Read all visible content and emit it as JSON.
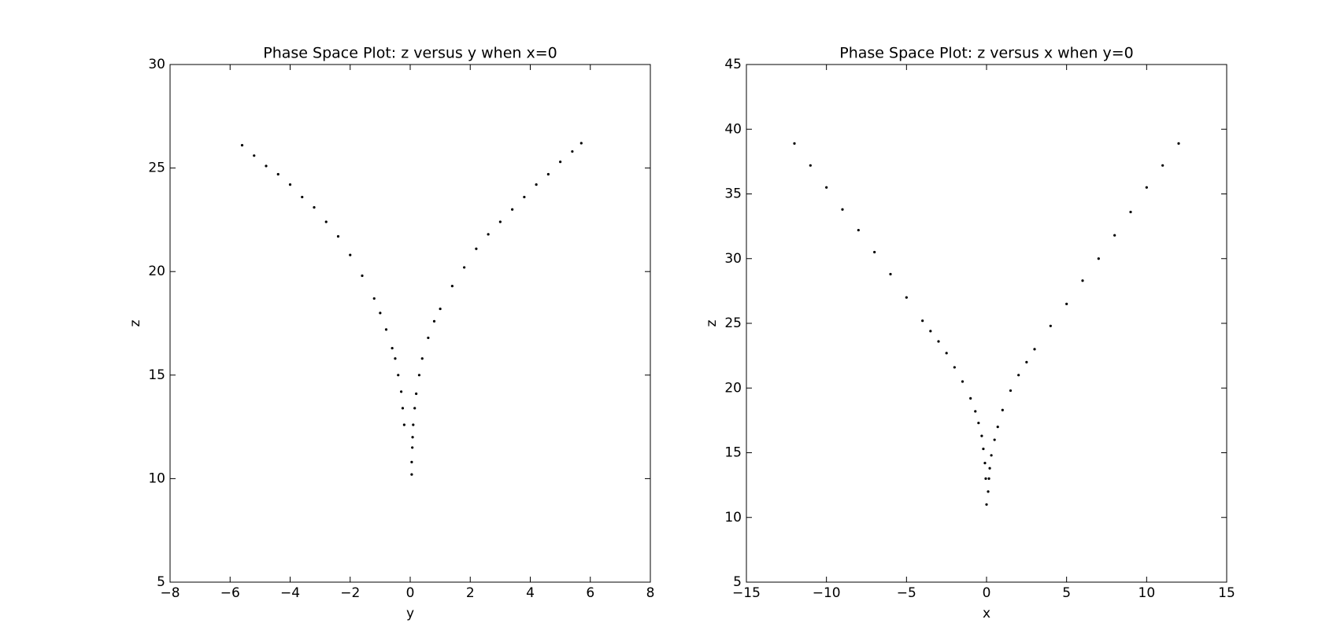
{
  "chart_data": [
    {
      "type": "scatter",
      "title": "Phase Space Plot: z versus y when x=0",
      "x_label": "y",
      "y_label": "z",
      "xlim": [
        -8,
        8
      ],
      "ylim": [
        5,
        30
      ],
      "xticks": [
        {
          "value": -8,
          "label": "−8"
        },
        {
          "value": -6,
          "label": "−6"
        },
        {
          "value": -4,
          "label": "−4"
        },
        {
          "value": -2,
          "label": "−2"
        },
        0,
        2,
        4,
        6,
        8
      ],
      "yticks": [
        5,
        10,
        15,
        20,
        25,
        30
      ],
      "series": [
        {
          "color": "#000000",
          "x": [
            -5.6,
            -5.2,
            -4.8,
            -4.4,
            -4.0,
            -3.6,
            -3.2,
            -2.8,
            -2.4,
            -2.0,
            -1.6,
            -1.2,
            -1.0,
            -0.8,
            -0.6,
            -0.5,
            -0.4,
            -0.3,
            -0.25,
            -0.2,
            0.05,
            0.05,
            0.07,
            0.08,
            0.1,
            0.15,
            0.2,
            0.3,
            0.4,
            0.6,
            0.8,
            1.0,
            1.4,
            1.8,
            2.2,
            2.6,
            3.0,
            3.4,
            3.8,
            4.2,
            4.6,
            5.0,
            5.4,
            5.7
          ],
          "y": [
            26.1,
            25.6,
            25.1,
            24.7,
            24.2,
            23.6,
            23.1,
            22.4,
            21.7,
            20.8,
            19.8,
            18.7,
            18.0,
            17.2,
            16.3,
            15.8,
            15.0,
            14.2,
            13.4,
            12.6,
            10.2,
            10.8,
            11.5,
            12.0,
            12.6,
            13.4,
            14.1,
            15.0,
            15.8,
            16.8,
            17.6,
            18.2,
            19.3,
            20.2,
            21.1,
            21.8,
            22.4,
            23.0,
            23.6,
            24.2,
            24.7,
            25.3,
            25.8,
            26.2
          ]
        }
      ]
    },
    {
      "type": "scatter",
      "title": "Phase Space Plot: z versus x when y=0",
      "x_label": "x",
      "y_label": "z",
      "xlim": [
        -15,
        15
      ],
      "ylim": [
        5,
        45
      ],
      "xticks": [
        {
          "value": -15,
          "label": "−15"
        },
        {
          "value": -10,
          "label": "−10"
        },
        {
          "value": -5,
          "label": "−5"
        },
        0,
        5,
        10,
        15
      ],
      "yticks": [
        5,
        10,
        15,
        20,
        25,
        30,
        35,
        40,
        45
      ],
      "series": [
        {
          "color": "#000000",
          "x": [
            -12,
            -11,
            -10,
            -9,
            -8,
            -7,
            -6,
            -5,
            -4,
            -3.5,
            -3,
            -2.5,
            -2,
            -1.5,
            -1,
            -0.7,
            -0.5,
            -0.3,
            -0.2,
            -0.1,
            -0.05,
            0,
            0.1,
            0.15,
            0.2,
            0.3,
            0.5,
            0.7,
            1,
            1.5,
            2,
            2.5,
            3,
            4,
            5,
            6,
            7,
            8,
            9,
            10,
            11,
            12
          ],
          "y": [
            38.9,
            37.2,
            35.5,
            33.8,
            32.2,
            30.5,
            28.8,
            27.0,
            25.2,
            24.4,
            23.6,
            22.7,
            21.6,
            20.5,
            19.2,
            18.2,
            17.3,
            16.3,
            15.3,
            14.2,
            13.0,
            11.0,
            12.0,
            13.0,
            13.8,
            14.8,
            16.0,
            17.0,
            18.3,
            19.8,
            21.0,
            22.0,
            23.0,
            24.8,
            26.5,
            28.3,
            30.0,
            31.8,
            33.6,
            35.5,
            37.2,
            38.9
          ]
        }
      ]
    }
  ]
}
